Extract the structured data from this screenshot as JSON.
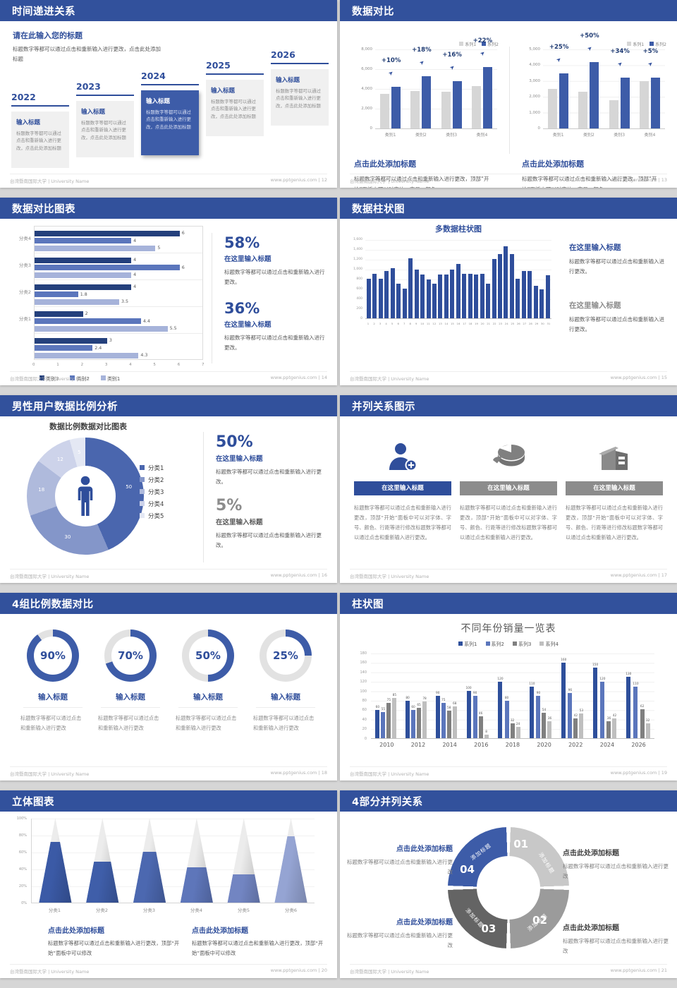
{
  "colors": {
    "header": "#32519C",
    "accent": "#2F4E9B",
    "bar_blue": "#3D5CA8",
    "bar_dark": "#24407C",
    "bar_mid": "#5B76BC",
    "bar_light": "#A6B3DA",
    "gray_bar": "#D6D6D6",
    "gray_dark": "#808080",
    "gray_mid": "#9B9B9B",
    "gray_deep": "#646464",
    "body_text": "#595959",
    "muted_text": "#7F7F7F",
    "footer_text": "#B2B2B2"
  },
  "footer": {
    "org": "台湾暨南国际大学 | University Name",
    "site": "www.pptgenius.com",
    "sep": "|"
  },
  "slides": {
    "s1": {
      "title": "时间递进关系",
      "page": "12",
      "intro_title": "请在此输入您的标题",
      "intro_body": "标题数字等都可以通过点击和重新输入进行更改，点击此处添加标题",
      "years": [
        "2022",
        "2023",
        "2024",
        "2025",
        "2026"
      ],
      "highlight_year": "2024",
      "box_title": "输入标题",
      "box_body": "标题数字等都可以通过点击和重新输入进行更改，点击此处添加标题"
    },
    "s2": {
      "title": "数据对比",
      "page": "13",
      "panels": [
        {
          "heading": "点击此处添加标题",
          "body": "标题数字等都可以通过点击和重新输入进行更改，顶部“开始”面板中可以对字体、字号、颜色。"
        },
        {
          "heading": "点击此处添加标题",
          "body": "标题数字等都可以通过点击和重新输入进行更改，顶部“开始”面板中可以对字体、字号、颜色。"
        }
      ]
    },
    "s3": {
      "title": "数据对比图表",
      "page": "14",
      "blocks": [
        {
          "pct": "58%",
          "heading": "在这里输入标题",
          "body": "标题数字等都可以通过点击和重新输入进行更改。"
        },
        {
          "pct": "36%",
          "heading": "在这里输入标题",
          "body": "标题数字等都可以通过点击和重新输入进行更改。"
        }
      ]
    },
    "s4": {
      "title": "数据柱状图",
      "page": "15",
      "blocks": [
        {
          "heading": "在这里输入标题",
          "body": "标题数字等都可以通过点击和重新输入进行更改。",
          "style": "blue"
        },
        {
          "heading": "在这里输入标题",
          "body": "标题数字等都可以通过点击和重新输入进行更改。",
          "style": "gray"
        }
      ]
    },
    "s5": {
      "title": "男性用户数据比例分析",
      "page": "16",
      "blocks": [
        {
          "pct": "50%",
          "heading": "在这里输入标题",
          "body": "标题数字等都可以通过点击和重新输入进行更改。",
          "style": "blue"
        },
        {
          "pct": "5%",
          "heading": "在这里输入标题",
          "body": "标题数字等都可以通过点击和重新输入进行更改。",
          "style": "gray"
        }
      ]
    },
    "s6": {
      "title": "并列关系图示",
      "page": "17",
      "columns": [
        {
          "icon": "person-add-icon",
          "bar": "在这里输入标题",
          "accent": "blue",
          "body": "标题数字等都可以通过点击和重新输入进行更改，顶部“开始”面板中可以对字体、字号、颜色、行距等进行修改标题数字等都可以通过点击和重新输入进行更改。"
        },
        {
          "icon": "pie-3d-icon",
          "bar": "在这里输入标题",
          "accent": "gray",
          "body": "标题数字等都可以通过点击和重新输入进行更改，顶部“开始”面板中可以对字体、字号、颜色、行距等进行修改标题数字等都可以通过点击和重新输入进行更改。"
        },
        {
          "icon": "building-icon",
          "bar": "在这里输入标题",
          "accent": "gray",
          "body": "标题数字等都可以通过点击和重新输入进行更改，顶部“开始”面板中可以对字体、字号、颜色、行距等进行修改标题数字等都可以通过点击和重新输入进行更改。"
        }
      ]
    },
    "s7": {
      "title": "4组比例数据对比",
      "page": "18",
      "gauges": [
        {
          "pct": 90,
          "label": "90%",
          "heading": "输入标题",
          "body": "标题数字等都可以通过点击和重新输入进行更改"
        },
        {
          "pct": 70,
          "label": "70%",
          "heading": "输入标题",
          "body": "标题数字等都可以通过点击和重新输入进行更改"
        },
        {
          "pct": 50,
          "label": "50%",
          "heading": "输入标题",
          "body": "标题数字等都可以通过点击和重新输入进行更改"
        },
        {
          "pct": 25,
          "label": "25%",
          "heading": "输入标题",
          "body": "标题数字等都可以通过点击和重新输入进行更改"
        }
      ]
    },
    "s8": {
      "title": "柱状图",
      "page": "19"
    },
    "s9": {
      "title": "立体图表",
      "page": "20",
      "blocks": [
        {
          "heading": "点击此处添加标题",
          "body": "标题数字等都可以通过点击和重新输入进行更改，顶部“开始”面板中可以修改"
        },
        {
          "heading": "点击此处添加标题",
          "body": "标题数字等都可以通过点击和重新输入进行更改，顶部“开始”面板中可以修改"
        }
      ]
    },
    "s10": {
      "title": "4部分并列关系",
      "page": "21",
      "arc_label": "添加标题",
      "numbers": [
        "01",
        "02",
        "03",
        "04"
      ],
      "blocks": [
        {
          "heading": "点击此处添加标题",
          "body": "标题数字等都可以通过点击和重新输入进行更改"
        },
        {
          "heading": "点击此处添加标题",
          "body": "标题数字等都可以通过点击和重新输入进行更改"
        },
        {
          "heading": "点击此处添加标题",
          "body": "标题数字等都可以通过点击和重新输入进行更改"
        },
        {
          "heading": "点击此处添加标题",
          "body": "标题数字等都可以通过点击和重新输入进行更改"
        }
      ]
    }
  },
  "chart_data": [
    {
      "id": "compare-left",
      "type": "bar",
      "categories": [
        "类别1",
        "类别2",
        "类别3",
        "类别4"
      ],
      "series": [
        {
          "name": "系列1",
          "color": "#D6D6D6",
          "values": [
            3500,
            3800,
            3700,
            4300
          ]
        },
        {
          "name": "系列2",
          "color": "#3D5CA8",
          "values": [
            4200,
            5300,
            4800,
            6200
          ]
        }
      ],
      "growth_labels": [
        "+10%",
        "+18%",
        "+16%",
        "+22%"
      ],
      "ylim": [
        0,
        8000
      ],
      "yticks": [
        "8,000",
        "6,000",
        "4,000",
        "2,000",
        "0"
      ],
      "legend_position": "top-right"
    },
    {
      "id": "compare-right",
      "type": "bar",
      "categories": [
        "类别1",
        "类别2",
        "类别3",
        "类别4"
      ],
      "series": [
        {
          "name": "系列1",
          "color": "#D6D6D6",
          "values": [
            2500,
            2300,
            1800,
            3000
          ]
        },
        {
          "name": "系列2",
          "color": "#3D5CA8",
          "values": [
            3500,
            4200,
            3200,
            3200
          ]
        }
      ],
      "growth_labels": [
        "+25%",
        "+50%",
        "+34%",
        "+5%"
      ],
      "ylim": [
        0,
        5000
      ],
      "yticks": [
        "5,000",
        "4,000",
        "3,000",
        "2,000",
        "1,000",
        "0"
      ],
      "legend_position": "top-right"
    },
    {
      "id": "category-compare",
      "type": "bar",
      "orientation": "horizontal",
      "legend": [
        "类别3",
        "类别2",
        "类别1"
      ],
      "colors": [
        "#24407C",
        "#5B76BC",
        "#A6B3DA"
      ],
      "group_labels": [
        "分类4",
        "分类3",
        "分类2",
        "分类1",
        ""
      ],
      "groups": [
        [
          6,
          4,
          5
        ],
        [
          4,
          6,
          4
        ],
        [
          4,
          1.8,
          3.5
        ],
        [
          2,
          4.4,
          5.5
        ],
        [
          3,
          2.4,
          4.3
        ]
      ],
      "xlim": [
        0,
        7
      ],
      "xticks": [
        "0",
        "1",
        "2",
        "3",
        "4",
        "5",
        "6",
        "7"
      ]
    },
    {
      "id": "multi-column",
      "type": "bar",
      "title": "多数据柱状图",
      "color": "#2F4E9B",
      "x": [
        "1",
        "2",
        "3",
        "4",
        "5",
        "6",
        "7",
        "8",
        "9",
        "10",
        "11",
        "12",
        "13",
        "14",
        "15",
        "16",
        "17",
        "18",
        "19",
        "20",
        "21",
        "22",
        "23",
        "24",
        "25",
        "26",
        "27",
        "28",
        "29",
        "30",
        "31"
      ],
      "values": [
        800,
        900,
        800,
        950,
        1020,
        700,
        600,
        1210,
        980,
        890,
        780,
        700,
        890,
        890,
        990,
        1100,
        900,
        900,
        880,
        900,
        700,
        1200,
        1300,
        1450,
        1300,
        800,
        960,
        960,
        660,
        590,
        870
      ],
      "ylim": [
        0,
        1600
      ],
      "yticks": [
        "1,600",
        "1,400",
        "1,200",
        "1,000",
        "800",
        "600",
        "400",
        "200",
        "0"
      ]
    },
    {
      "id": "male-ratio-donut",
      "type": "pie",
      "title": "数据比例数据对比图表",
      "labels": [
        "分类1",
        "分类2",
        "分类3",
        "分类4",
        "分类5"
      ],
      "values": [
        50,
        30,
        18,
        12,
        5
      ],
      "colors": [
        "#4A66AE",
        "#8496C9",
        "#AFBADC",
        "#CDD3EA",
        "#E4E8F4"
      ]
    },
    {
      "id": "ratio-gauges",
      "type": "pie",
      "labels": [
        "90%",
        "70%",
        "50%",
        "25%"
      ],
      "values": [
        90,
        70,
        50,
        25
      ],
      "color": "#3D5CA8",
      "track": "#E2E2E2"
    },
    {
      "id": "year-sales",
      "type": "bar",
      "title": "不同年份销量一览表",
      "categories": [
        "2010",
        "2012",
        "2014",
        "2016",
        "2018",
        "2020",
        "2022",
        "2024",
        "2026"
      ],
      "series": [
        {
          "name": "系列1",
          "color": "#2E4F9B",
          "values": [
            60,
            80,
            90,
            100,
            120,
            110,
            160,
            150,
            130
          ]
        },
        {
          "name": "系列2",
          "color": "#5B76BC",
          "values": [
            55,
            60,
            75,
            90,
            80,
            90,
            96,
            120,
            110
          ]
        },
        {
          "name": "系列3",
          "color": "#808080",
          "values": [
            75,
            65,
            58,
            46,
            32,
            54,
            42,
            36,
            62
          ]
        },
        {
          "name": "系列4",
          "color": "#BFBFBF",
          "values": [
            85,
            78,
            68,
            8,
            24,
            36,
            53,
            42,
            32
          ]
        }
      ],
      "ylim": [
        0,
        180
      ],
      "yticks": [
        "180",
        "160",
        "140",
        "120",
        "100",
        "80",
        "60",
        "40",
        "20",
        "0"
      ],
      "legend_position": "top"
    },
    {
      "id": "cone-chart",
      "type": "bar",
      "subtype": "cone-3d",
      "categories": [
        "分类1",
        "分类2",
        "分类3",
        "分类4",
        "分类5",
        "分类6"
      ],
      "values": [
        72,
        48,
        60,
        42,
        33,
        78
      ],
      "unit": "%",
      "ylim": [
        0,
        100
      ],
      "yticks": [
        "100%",
        "80%",
        "60%",
        "40%",
        "20%",
        "0%"
      ],
      "colors": [
        "#3B5AA6",
        "#3F5EA9",
        "#4C68B0",
        "#5E76BA",
        "#7285C2",
        "#95A4D3"
      ]
    }
  ]
}
